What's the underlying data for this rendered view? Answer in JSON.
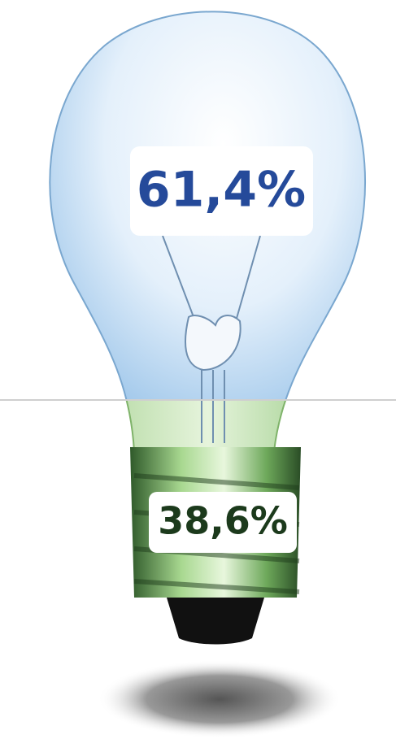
{
  "top": {
    "label": "61,4%"
  },
  "bottom": {
    "label": "38,6%"
  }
}
